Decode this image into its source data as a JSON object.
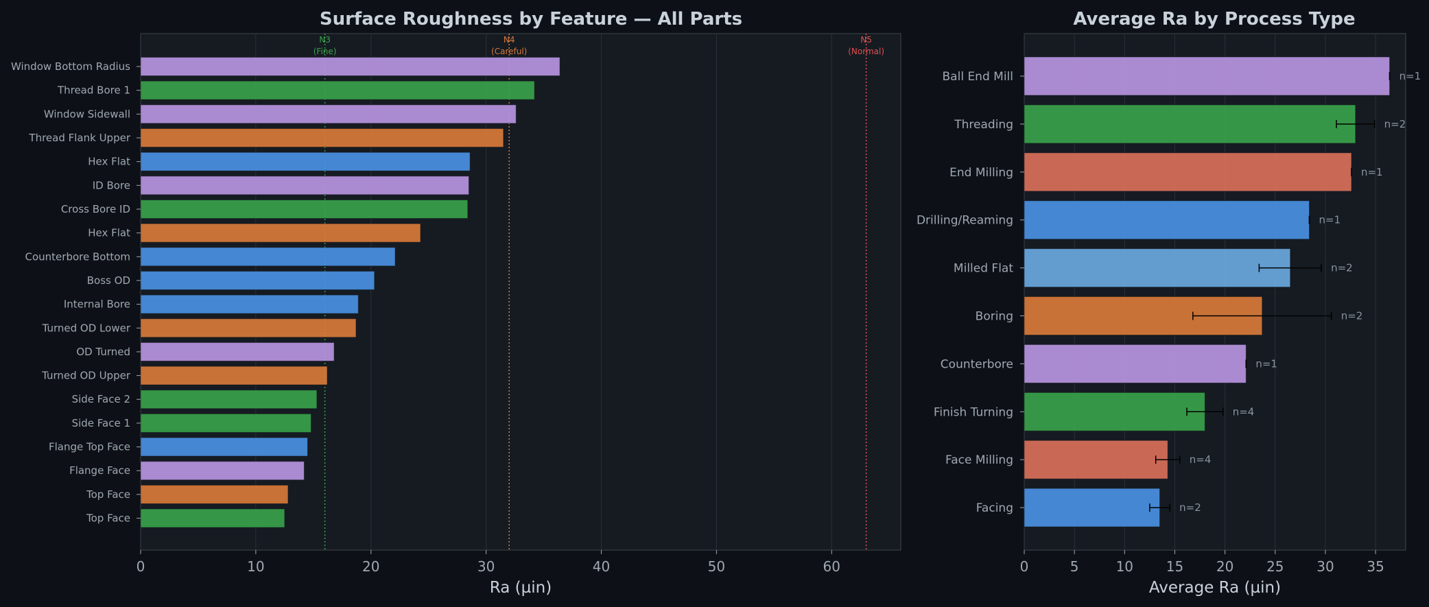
{
  "chart_data": [
    {
      "type": "bar",
      "orientation": "horizontal",
      "title": "Surface Roughness by Feature — All Parts",
      "xlabel": "Ra (µin)",
      "ylabel": "",
      "xlim": [
        0,
        66
      ],
      "xticks": [
        0,
        10,
        20,
        30,
        40,
        50,
        60
      ],
      "grid": true,
      "categories": [
        "Window Bottom Radius",
        "Thread Bore 1",
        "Window Sidewall",
        "Thread Flank Upper",
        "Hex Flat",
        "ID Bore",
        "Cross Bore ID",
        "Hex Flat",
        "Counterbore Bottom",
        "Boss OD",
        "Internal Bore",
        "Turned OD Lower",
        "OD Turned",
        "Turned OD Upper",
        "Side Face 2",
        "Side Face 1",
        "Flange Top Face",
        "Flange Face",
        "Top Face",
        "Top Face"
      ],
      "values": [
        36.4,
        34.2,
        32.6,
        31.5,
        28.6,
        28.5,
        28.4,
        24.3,
        22.1,
        20.3,
        18.9,
        18.7,
        16.8,
        16.2,
        15.3,
        14.8,
        14.5,
        14.2,
        12.8,
        12.5
      ],
      "colors": [
        "#b794e0",
        "#3aa14b",
        "#b794e0",
        "#d97a3a",
        "#4a90e2",
        "#b794e0",
        "#3aa14b",
        "#d97a3a",
        "#4a90e2",
        "#4a90e2",
        "#4a90e2",
        "#d97a3a",
        "#b794e0",
        "#d97a3a",
        "#3aa14b",
        "#3aa14b",
        "#4a90e2",
        "#b794e0",
        "#d97a3a",
        "#3aa14b"
      ],
      "thresholds": [
        {
          "name": "N3",
          "label": "(Fine)",
          "value": 16,
          "color": "#3aa14b"
        },
        {
          "name": "N4",
          "label": "(Careful)",
          "value": 32,
          "color": "#d97a3a"
        },
        {
          "name": "N5",
          "label": "(Normal)",
          "value": 63,
          "color": "#e05050"
        }
      ]
    },
    {
      "type": "bar",
      "orientation": "horizontal",
      "title": "Average Ra by Process Type",
      "xlabel": "Average Ra (µin)",
      "ylabel": "",
      "xlim": [
        0,
        38
      ],
      "xticks": [
        0,
        5,
        10,
        15,
        20,
        25,
        30,
        35
      ],
      "grid": true,
      "categories": [
        "Ball End Mill",
        "Threading",
        "End Milling",
        "Drilling/Reaming",
        "Milled Flat",
        "Boring",
        "Counterbore",
        "Finish Turning",
        "Face Milling",
        "Facing"
      ],
      "values": [
        36.4,
        33.0,
        32.6,
        28.4,
        26.5,
        23.7,
        22.1,
        18.0,
        14.3,
        13.5
      ],
      "errors": [
        0,
        1.9,
        0,
        0,
        3.1,
        6.9,
        0,
        1.8,
        1.2,
        1.0
      ],
      "counts": [
        "n=1",
        "n=2",
        "n=1",
        "n=1",
        "n=2",
        "n=2",
        "n=1",
        "n=4",
        "n=4",
        "n=2"
      ],
      "colors": [
        "#b794e0",
        "#3aa14b",
        "#d9705a",
        "#4a90e2",
        "#6aa8e0",
        "#d97a3a",
        "#b794e0",
        "#3aa14b",
        "#d9705a",
        "#4a90e2"
      ]
    }
  ]
}
